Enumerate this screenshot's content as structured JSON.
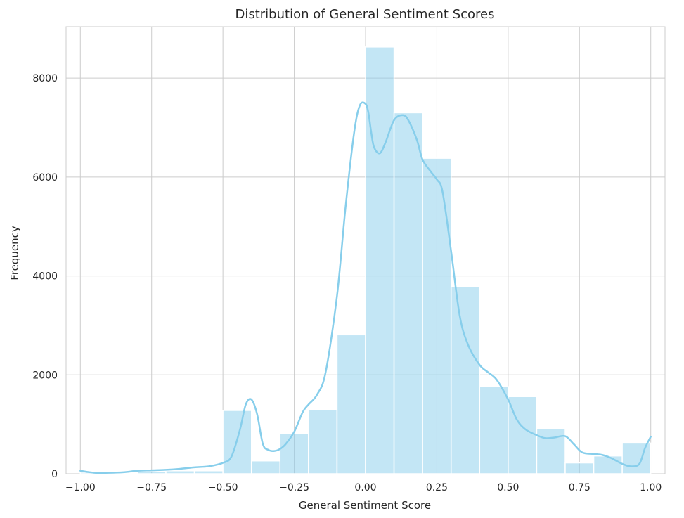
{
  "chart_data": {
    "type": "bar",
    "title": "Distribution of General Sentiment Scores",
    "xlabel": "General Sentiment Score",
    "ylabel": "Frequency",
    "xlim": [
      -1.05,
      1.05
    ],
    "ylim": [
      0,
      9040
    ],
    "xticks": [
      -1.0,
      -0.75,
      -0.5,
      -0.25,
      0.0,
      0.25,
      0.5,
      0.75,
      1.0
    ],
    "xtick_labels": [
      "−1.00",
      "−0.75",
      "−0.50",
      "−0.25",
      "0.00",
      "0.25",
      "0.50",
      "0.75",
      "1.00"
    ],
    "yticks": [
      0,
      2000,
      4000,
      6000,
      8000
    ],
    "ytick_labels": [
      "0",
      "2000",
      "4000",
      "6000",
      "8000"
    ],
    "grid": true,
    "bar_color": "#87ceeb",
    "bar_opacity": 0.5,
    "bin_edges": [
      -1.0,
      -0.9,
      -0.8,
      -0.7,
      -0.6,
      -0.5,
      -0.4,
      -0.3,
      -0.2,
      -0.1,
      0.0,
      0.1,
      0.2,
      0.3,
      0.4,
      0.5,
      0.6,
      0.7,
      0.8,
      0.9,
      1.0
    ],
    "values": [
      30,
      10,
      40,
      60,
      60,
      1280,
      260,
      810,
      1300,
      2810,
      8630,
      7300,
      6380,
      3780,
      1760,
      1560,
      910,
      220,
      360,
      620
    ],
    "kde": {
      "color": "#87ceeb",
      "x": [
        -1.0,
        -0.95,
        -0.9,
        -0.85,
        -0.8,
        -0.75,
        -0.7,
        -0.65,
        -0.6,
        -0.55,
        -0.5,
        -0.47,
        -0.44,
        -0.42,
        -0.4,
        -0.38,
        -0.36,
        -0.34,
        -0.32,
        -0.3,
        -0.28,
        -0.25,
        -0.22,
        -0.2,
        -0.17,
        -0.14,
        -0.1,
        -0.07,
        -0.04,
        -0.02,
        0.0,
        0.01,
        0.02,
        0.03,
        0.05,
        0.07,
        0.1,
        0.13,
        0.15,
        0.18,
        0.2,
        0.23,
        0.25,
        0.27,
        0.3,
        0.33,
        0.36,
        0.4,
        0.43,
        0.46,
        0.5,
        0.53,
        0.56,
        0.6,
        0.63,
        0.66,
        0.7,
        0.73,
        0.76,
        0.8,
        0.83,
        0.86,
        0.9,
        0.93,
        0.96,
        0.98,
        1.0
      ],
      "y": [
        60,
        20,
        20,
        30,
        60,
        70,
        80,
        100,
        130,
        150,
        220,
        350,
        900,
        1400,
        1500,
        1200,
        600,
        480,
        460,
        500,
        600,
        850,
        1250,
        1400,
        1600,
        2050,
        3600,
        5400,
        6900,
        7450,
        7480,
        7300,
        6900,
        6600,
        6480,
        6700,
        7150,
        7250,
        7150,
        6750,
        6350,
        6100,
        5950,
        5700,
        4500,
        3200,
        2600,
        2200,
        2050,
        1900,
        1500,
        1100,
        900,
        780,
        720,
        730,
        760,
        600,
        430,
        400,
        380,
        320,
        200,
        150,
        200,
        520,
        750
      ]
    }
  }
}
